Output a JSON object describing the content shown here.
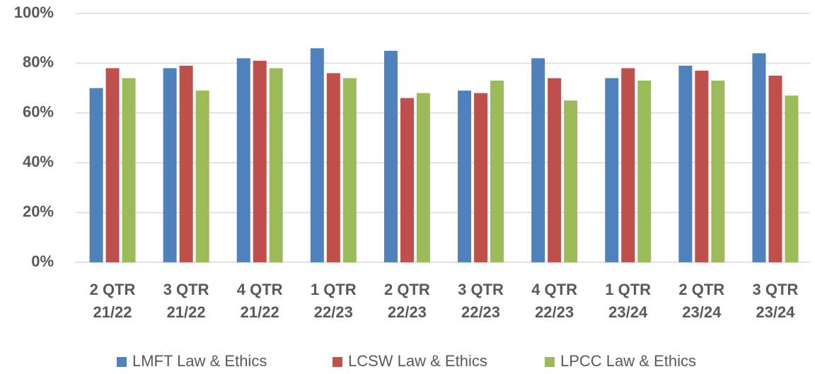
{
  "chart_data": {
    "type": "bar",
    "categories": [
      "2 QTR\n21/22",
      "3 QTR\n21/22",
      "4 QTR\n21/22",
      "1 QTR\n22/23",
      "2 QTR\n22/23",
      "3 QTR\n22/23",
      "4 QTR\n22/23",
      "1 QTR\n23/24",
      "2 QTR\n23/24",
      "3 QTR\n23/24"
    ],
    "series": [
      {
        "name": "LMFT Law & Ethics",
        "color": "#4f81bd",
        "values": [
          70,
          78,
          82,
          86,
          85,
          69,
          82,
          74,
          79,
          84
        ]
      },
      {
        "name": "LCSW Law & Ethics",
        "color": "#c0504d",
        "values": [
          78,
          79,
          81,
          76,
          66,
          68,
          74,
          78,
          77,
          75
        ]
      },
      {
        "name": "LPCC Law & Ethics",
        "color": "#9bbb59",
        "values": [
          74,
          69,
          78,
          74,
          68,
          73,
          65,
          73,
          73,
          67
        ]
      }
    ],
    "ylim": [
      0,
      100
    ],
    "yticks": [
      {
        "value": 0,
        "label": "0%"
      },
      {
        "value": 20,
        "label": "20%"
      },
      {
        "value": 40,
        "label": "40%"
      },
      {
        "value": 60,
        "label": "60%"
      },
      {
        "value": 80,
        "label": "80%"
      },
      {
        "value": 100,
        "label": "100%"
      }
    ],
    "grid": true,
    "legend": "bottom"
  }
}
